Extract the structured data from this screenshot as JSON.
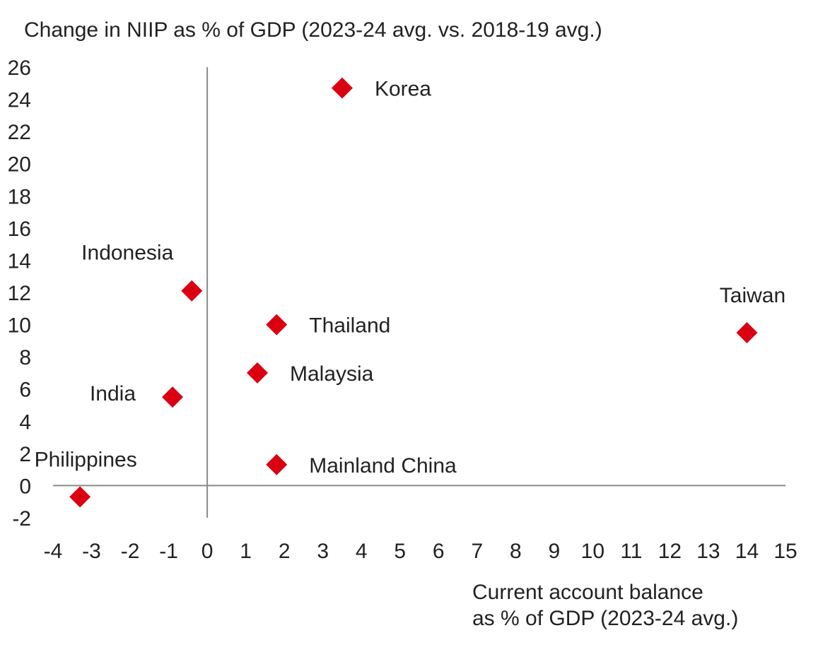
{
  "chart_data": {
    "type": "scatter",
    "title": "",
    "ylabel": "Change in NIIP as % of GDP (2023-24 avg. vs. 2018-19 avg.)",
    "xlabel_lines": [
      "Current account balance",
      "as % of GDP (2023-24 avg.)"
    ],
    "xlim": [
      -4,
      15
    ],
    "ylim": [
      -2,
      26
    ],
    "x_ticks": [
      -4,
      -3,
      -2,
      -1,
      0,
      1,
      2,
      3,
      4,
      5,
      6,
      7,
      8,
      9,
      10,
      11,
      12,
      13,
      14,
      15
    ],
    "y_ticks": [
      -2,
      0,
      2,
      4,
      6,
      8,
      10,
      12,
      14,
      16,
      18,
      20,
      22,
      24,
      26
    ],
    "grid": false,
    "marker": "diamond",
    "marker_color": "#db0011",
    "points": [
      {
        "label": "Korea",
        "x": 3.5,
        "y": 24.7,
        "label_pos": "right"
      },
      {
        "label": "Indonesia",
        "x": -0.4,
        "y": 12.1,
        "label_pos": "above-left"
      },
      {
        "label": "Thailand",
        "x": 1.8,
        "y": 10.0,
        "label_pos": "right"
      },
      {
        "label": "Taiwan",
        "x": 14.0,
        "y": 9.5,
        "label_pos": "above"
      },
      {
        "label": "Malaysia",
        "x": 1.3,
        "y": 7.0,
        "label_pos": "right"
      },
      {
        "label": "India",
        "x": -0.9,
        "y": 5.5,
        "label_pos": "left"
      },
      {
        "label": "Mainland China",
        "x": 1.8,
        "y": 1.3,
        "label_pos": "right"
      },
      {
        "label": "Philippines",
        "x": -3.3,
        "y": -0.7,
        "label_pos": "above"
      }
    ]
  }
}
